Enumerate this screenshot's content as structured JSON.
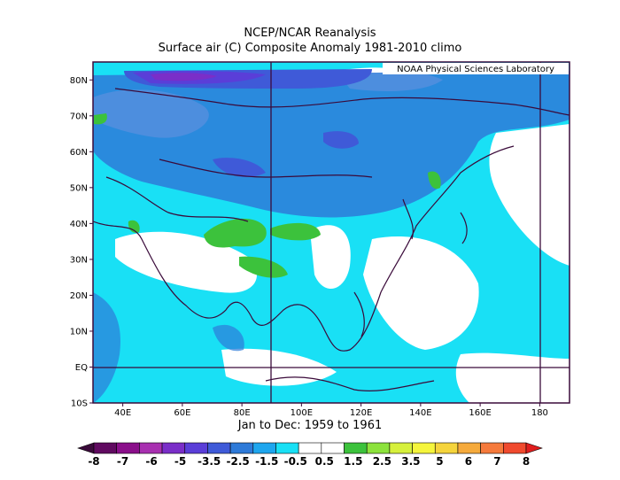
{
  "header": {
    "line1": "NCEP/NCAR Reanalysis",
    "line2": "Surface air (C) Composite Anomaly 1981-2010 climo"
  },
  "credit": "NOAA Physical Sciences Laboratory",
  "map": {
    "lon_range": [
      30,
      190
    ],
    "lat_range": [
      -10,
      85
    ],
    "lat_ticks": [
      "80N",
      "70N",
      "60N",
      "50N",
      "40N",
      "30N",
      "20N",
      "10N",
      "EQ",
      "10S"
    ],
    "lon_ticks": [
      "40E",
      "60E",
      "80E",
      "100E",
      "120E",
      "140E",
      "160E",
      "180"
    ],
    "reference_lines": {
      "lon": [
        90,
        180
      ],
      "lat": [
        0
      ]
    },
    "time_label": "Jan to Dec: 1959 to 1961"
  },
  "colorbar": {
    "labels": [
      "-8",
      "-7",
      "-6",
      "-5",
      "-3.5",
      "-2.5",
      "-1.5",
      "-0.5",
      "0.5",
      "1.5",
      "2.5",
      "3.5",
      "5",
      "6",
      "7",
      "8"
    ],
    "colors": [
      "#3a0a3a",
      "#600a60",
      "#8a0f8a",
      "#a830b0",
      "#7a2ec8",
      "#5a3ed8",
      "#3f5ad8",
      "#2e7ad8",
      "#1ea6ee",
      "#19e0f5",
      "#ffffff",
      "#ffffff",
      "#3cc23c",
      "#8ce23c",
      "#d6f03c",
      "#f5f53c",
      "#f5d43c",
      "#f5aa3c",
      "#f57a3c",
      "#f04a2e",
      "#e01e1e"
    ]
  }
}
